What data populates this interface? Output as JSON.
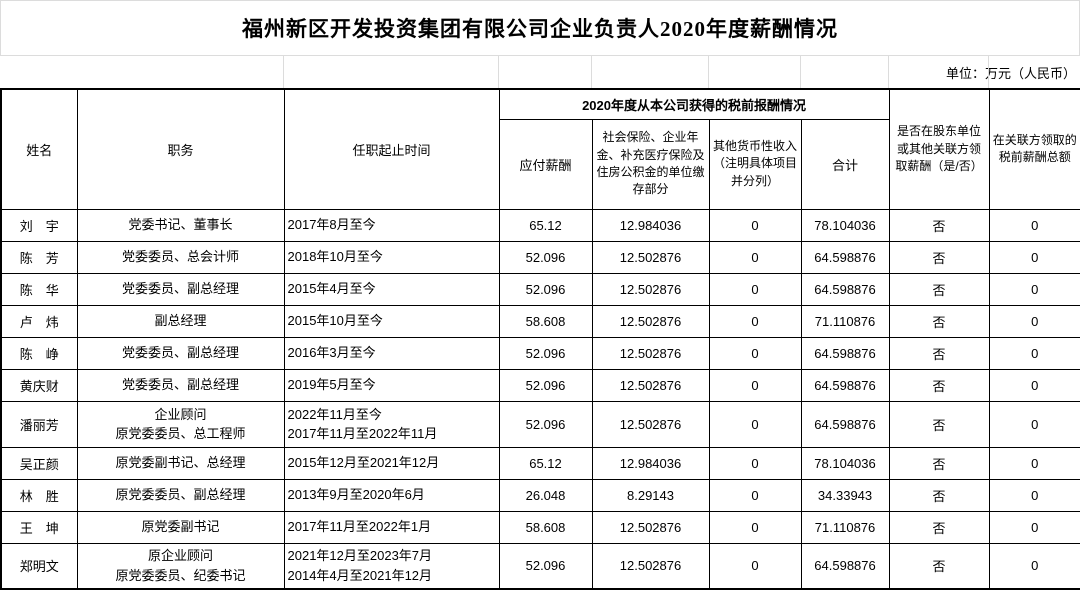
{
  "title": "福州新区开发投资集团有限公司企业负责人2020年度薪酬情况",
  "unit_note": "单位：万元（人民币）",
  "table": {
    "headers": {
      "name": "姓名",
      "position": "职务",
      "term": "任职起止时间",
      "income_group": "2020年度从本公司获得的税前报酬情况",
      "payable_salary": "应付薪酬",
      "social_insurance": "社会保险、企业年金、补充医疗保险及住房公积金的单位缴存部分",
      "other_income": "其他货币性收入（注明具体项目并分列）",
      "total": "合计",
      "related_party_flag": "是否在股东单位或其他关联方领取薪酬（是/否）",
      "related_party_total": "在关联方领取的税前薪酬总额"
    },
    "rows": [
      {
        "name": "刘　宇",
        "position": [
          "党委书记、董事长"
        ],
        "term": [
          "2017年8月至今"
        ],
        "payable_salary": "65.12",
        "social_insurance": "12.984036",
        "other_income": "0",
        "total": "78.104036",
        "related_party_flag": "否",
        "related_party_total": "0"
      },
      {
        "name": "陈　芳",
        "position": [
          "党委委员、总会计师"
        ],
        "term": [
          "2018年10月至今"
        ],
        "payable_salary": "52.096",
        "social_insurance": "12.502876",
        "other_income": "0",
        "total": "64.598876",
        "related_party_flag": "否",
        "related_party_total": "0"
      },
      {
        "name": "陈　华",
        "position": [
          "党委委员、副总经理"
        ],
        "term": [
          "2015年4月至今"
        ],
        "payable_salary": "52.096",
        "social_insurance": "12.502876",
        "other_income": "0",
        "total": "64.598876",
        "related_party_flag": "否",
        "related_party_total": "0"
      },
      {
        "name": "卢　炜",
        "position": [
          "副总经理"
        ],
        "term": [
          "2015年10月至今"
        ],
        "payable_salary": "58.608",
        "social_insurance": "12.502876",
        "other_income": "0",
        "total": "71.110876",
        "related_party_flag": "否",
        "related_party_total": "0"
      },
      {
        "name": "陈　峥",
        "position": [
          "党委委员、副总经理"
        ],
        "term": [
          "2016年3月至今"
        ],
        "payable_salary": "52.096",
        "social_insurance": "12.502876",
        "other_income": "0",
        "total": "64.598876",
        "related_party_flag": "否",
        "related_party_total": "0"
      },
      {
        "name": "黄庆财",
        "position": [
          "党委委员、副总经理"
        ],
        "term": [
          "2019年5月至今"
        ],
        "payable_salary": "52.096",
        "social_insurance": "12.502876",
        "other_income": "0",
        "total": "64.598876",
        "related_party_flag": "否",
        "related_party_total": "0"
      },
      {
        "name": "潘丽芳",
        "position": [
          "企业顾问",
          "原党委委员、总工程师"
        ],
        "term": [
          "2022年11月至今",
          "2017年11月至2022年11月"
        ],
        "payable_salary": "52.096",
        "social_insurance": "12.502876",
        "other_income": "0",
        "total": "64.598876",
        "related_party_flag": "否",
        "related_party_total": "0"
      },
      {
        "name": "吴正颜",
        "position": [
          "原党委副书记、总经理"
        ],
        "term": [
          "2015年12月至2021年12月"
        ],
        "payable_salary": "65.12",
        "social_insurance": "12.984036",
        "other_income": "0",
        "total": "78.104036",
        "related_party_flag": "否",
        "related_party_total": "0"
      },
      {
        "name": "林　胜",
        "position": [
          "原党委委员、副总经理"
        ],
        "term": [
          "2013年9月至2020年6月"
        ],
        "payable_salary": "26.048",
        "social_insurance": "8.29143",
        "other_income": "0",
        "total": "34.33943",
        "related_party_flag": "否",
        "related_party_total": "0"
      },
      {
        "name": "王　坤",
        "position": [
          "原党委副书记"
        ],
        "term": [
          "2017年11月至2022年1月"
        ],
        "payable_salary": "58.608",
        "social_insurance": "12.502876",
        "other_income": "0",
        "total": "71.110876",
        "related_party_flag": "否",
        "related_party_total": "0"
      },
      {
        "name": "郑明文",
        "position": [
          "原企业顾问",
          "原党委委员、纪委书记"
        ],
        "term": [
          "2021年12月至2023年7月",
          "2014年4月至2021年12月"
        ],
        "payable_salary": "52.096",
        "social_insurance": "12.502876",
        "other_income": "0",
        "total": "64.598876",
        "related_party_flag": "否",
        "related_party_total": "0"
      }
    ]
  }
}
